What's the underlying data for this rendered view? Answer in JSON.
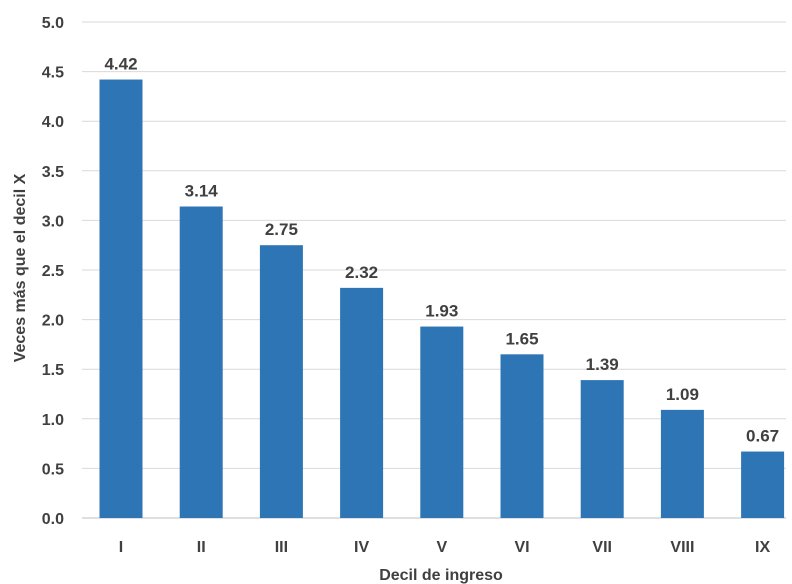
{
  "chart_data": {
    "type": "bar",
    "title": "",
    "xlabel": "Decil de ingreso",
    "ylabel": "Veces más que el decil X",
    "categories": [
      "I",
      "II",
      "III",
      "IV",
      "V",
      "VI",
      "VII",
      "VIII",
      "IX"
    ],
    "values": [
      4.42,
      3.14,
      2.75,
      2.32,
      1.93,
      1.65,
      1.39,
      1.09,
      0.67
    ],
    "value_labels": [
      "4.42",
      "3.14",
      "2.75",
      "2.32",
      "1.93",
      "1.65",
      "1.39",
      "1.09",
      "0.67"
    ],
    "ylim": [
      0,
      5
    ],
    "yticks": [
      "0.0",
      "0.5",
      "1.0",
      "1.5",
      "2.0",
      "2.5",
      "3.0",
      "3.5",
      "4.0",
      "4.5",
      "5.0"
    ],
    "grid": true,
    "legend": "none",
    "colors": {
      "bar": "#2e75b6",
      "text": "#404040",
      "grid": "#d9d9d9"
    }
  }
}
